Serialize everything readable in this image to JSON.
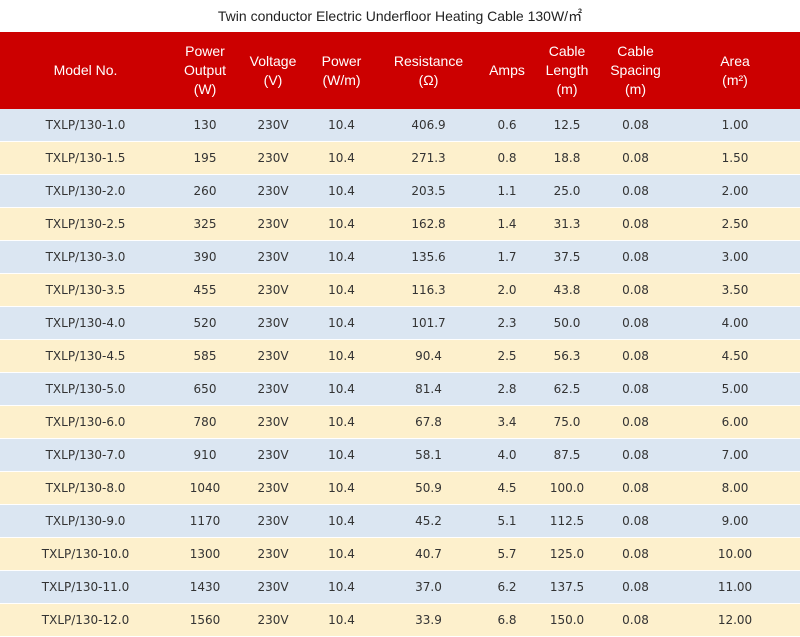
{
  "title": "Twin conductor Electric Underfloor Heating Cable 130W/㎡",
  "columns": [
    [
      "Model No."
    ],
    [
      "Power",
      "Output",
      "(W)"
    ],
    [
      "Voltage",
      "(V)"
    ],
    [
      "Power",
      "(W/m)"
    ],
    [
      "Resistance",
      "(Ω)"
    ],
    [
      "Amps"
    ],
    [
      "Cable",
      "Length",
      "(m)"
    ],
    [
      "Cable",
      "Spacing",
      "(m)"
    ],
    [
      "Area",
      "(m²)"
    ]
  ],
  "rows": [
    [
      "TXLP/130-1.0",
      "130",
      "230V",
      "10.4",
      "406.9",
      "0.6",
      "12.5",
      "0.08",
      "1.00"
    ],
    [
      "TXLP/130-1.5",
      "195",
      "230V",
      "10.4",
      "271.3",
      "0.8",
      "18.8",
      "0.08",
      "1.50"
    ],
    [
      "TXLP/130-2.0",
      "260",
      "230V",
      "10.4",
      "203.5",
      "1.1",
      "25.0",
      "0.08",
      "2.00"
    ],
    [
      "TXLP/130-2.5",
      "325",
      "230V",
      "10.4",
      "162.8",
      "1.4",
      "31.3",
      "0.08",
      "2.50"
    ],
    [
      "TXLP/130-3.0",
      "390",
      "230V",
      "10.4",
      "135.6",
      "1.7",
      "37.5",
      "0.08",
      "3.00"
    ],
    [
      "TXLP/130-3.5",
      "455",
      "230V",
      "10.4",
      "116.3",
      "2.0",
      "43.8",
      "0.08",
      "3.50"
    ],
    [
      "TXLP/130-4.0",
      "520",
      "230V",
      "10.4",
      "101.7",
      "2.3",
      "50.0",
      "0.08",
      "4.00"
    ],
    [
      "TXLP/130-4.5",
      "585",
      "230V",
      "10.4",
      "90.4",
      "2.5",
      "56.3",
      "0.08",
      "4.50"
    ],
    [
      "TXLP/130-5.0",
      "650",
      "230V",
      "10.4",
      "81.4",
      "2.8",
      "62.5",
      "0.08",
      "5.00"
    ],
    [
      "TXLP/130-6.0",
      "780",
      "230V",
      "10.4",
      "67.8",
      "3.4",
      "75.0",
      "0.08",
      "6.00"
    ],
    [
      "TXLP/130-7.0",
      "910",
      "230V",
      "10.4",
      "58.1",
      "4.0",
      "87.5",
      "0.08",
      "7.00"
    ],
    [
      "TXLP/130-8.0",
      "1040",
      "230V",
      "10.4",
      "50.9",
      "4.5",
      "100.0",
      "0.08",
      "8.00"
    ],
    [
      "TXLP/130-9.0",
      "1170",
      "230V",
      "10.4",
      "45.2",
      "5.1",
      "112.5",
      "0.08",
      "9.00"
    ],
    [
      "TXLP/130-10.0",
      "1300",
      "230V",
      "10.4",
      "40.7",
      "5.7",
      "125.0",
      "0.08",
      "10.00"
    ],
    [
      "TXLP/130-11.0",
      "1430",
      "230V",
      "10.4",
      "37.0",
      "6.2",
      "137.5",
      "0.08",
      "11.00"
    ],
    [
      "TXLP/130-12.0",
      "1560",
      "230V",
      "10.4",
      "33.9",
      "6.8",
      "150.0",
      "0.08",
      "12.00"
    ]
  ],
  "colors": {
    "header_bg": "#cc0000",
    "row_odd_bg": "#dbe6f2",
    "row_even_bg": "#fdf0cc"
  }
}
